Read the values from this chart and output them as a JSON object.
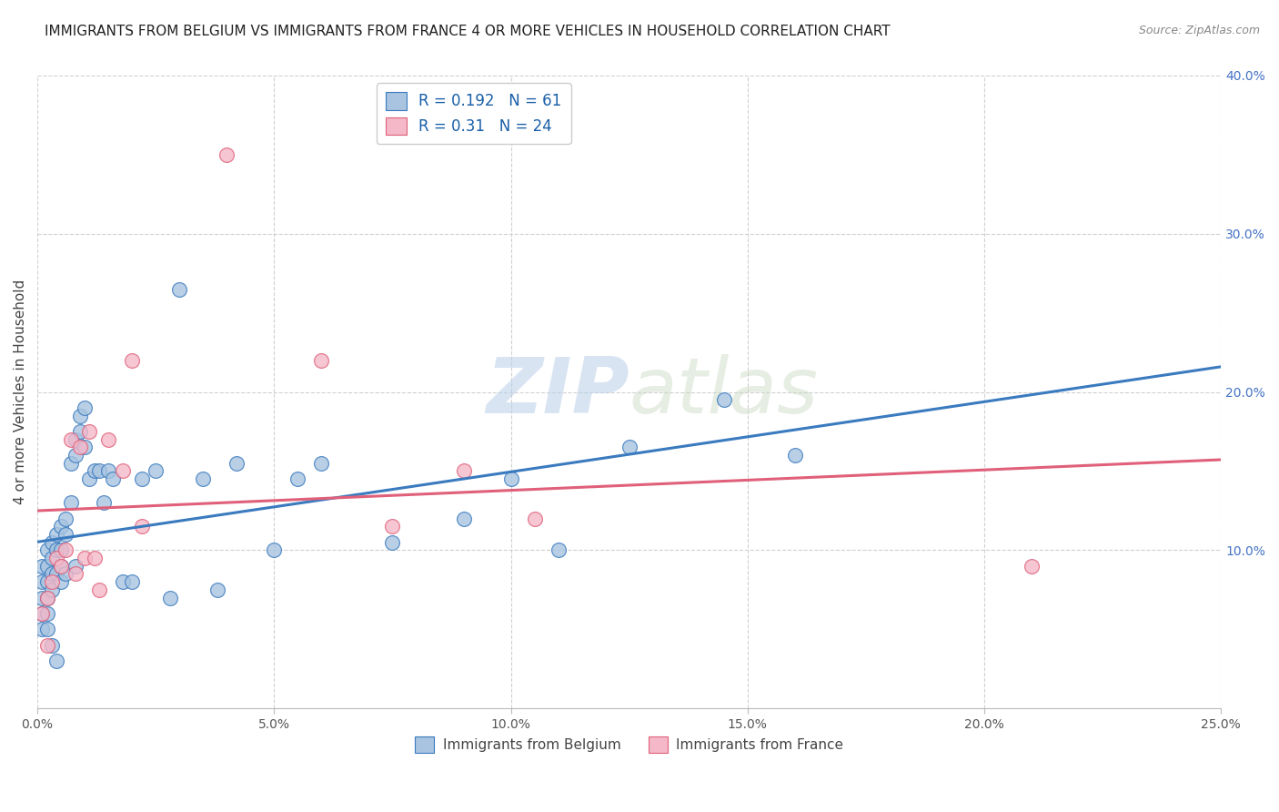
{
  "title": "IMMIGRANTS FROM BELGIUM VS IMMIGRANTS FROM FRANCE 4 OR MORE VEHICLES IN HOUSEHOLD CORRELATION CHART",
  "source": "Source: ZipAtlas.com",
  "ylabel": "4 or more Vehicles in Household",
  "legend_label1": "Immigrants from Belgium",
  "legend_label2": "Immigrants from France",
  "R1": 0.192,
  "N1": 61,
  "R2": 0.31,
  "N2": 24,
  "color_belgium": "#a8c4e0",
  "color_france": "#f4b8c8",
  "line_color_belgium": "#3a7abf",
  "line_color_france": "#e0607a",
  "xlim": [
    0.0,
    0.25
  ],
  "ylim": [
    0.0,
    0.4
  ],
  "xticks": [
    0.0,
    0.05,
    0.1,
    0.15,
    0.2,
    0.25
  ],
  "yticks": [
    0.0,
    0.1,
    0.2,
    0.3,
    0.4
  ],
  "xtick_labels": [
    "0.0%",
    "5.0%",
    "10.0%",
    "15.0%",
    "20.0%",
    "25.0%"
  ],
  "ytick_labels_right": [
    "",
    "10.0%",
    "20.0%",
    "30.0%",
    "40.0%"
  ],
  "belgium_x": [
    0.001,
    0.001,
    0.001,
    0.001,
    0.001,
    0.002,
    0.002,
    0.002,
    0.002,
    0.002,
    0.002,
    0.003,
    0.003,
    0.003,
    0.003,
    0.003,
    0.004,
    0.004,
    0.004,
    0.004,
    0.005,
    0.005,
    0.005,
    0.005,
    0.006,
    0.006,
    0.006,
    0.007,
    0.007,
    0.008,
    0.008,
    0.008,
    0.009,
    0.009,
    0.01,
    0.01,
    0.011,
    0.012,
    0.013,
    0.014,
    0.015,
    0.016,
    0.018,
    0.02,
    0.022,
    0.025,
    0.028,
    0.03,
    0.035,
    0.038,
    0.042,
    0.05,
    0.055,
    0.06,
    0.075,
    0.09,
    0.1,
    0.11,
    0.125,
    0.145,
    0.16
  ],
  "belgium_y": [
    0.09,
    0.08,
    0.07,
    0.06,
    0.05,
    0.1,
    0.09,
    0.08,
    0.07,
    0.06,
    0.05,
    0.105,
    0.095,
    0.085,
    0.075,
    0.04,
    0.11,
    0.1,
    0.085,
    0.03,
    0.115,
    0.1,
    0.09,
    0.08,
    0.12,
    0.11,
    0.085,
    0.155,
    0.13,
    0.17,
    0.16,
    0.09,
    0.185,
    0.175,
    0.19,
    0.165,
    0.145,
    0.15,
    0.15,
    0.13,
    0.15,
    0.145,
    0.08,
    0.08,
    0.145,
    0.15,
    0.07,
    0.265,
    0.145,
    0.075,
    0.155,
    0.1,
    0.145,
    0.155,
    0.105,
    0.12,
    0.145,
    0.1,
    0.165,
    0.195,
    0.16
  ],
  "france_x": [
    0.001,
    0.002,
    0.002,
    0.003,
    0.004,
    0.005,
    0.006,
    0.007,
    0.008,
    0.009,
    0.01,
    0.011,
    0.012,
    0.013,
    0.015,
    0.018,
    0.02,
    0.022,
    0.04,
    0.06,
    0.075,
    0.09,
    0.105,
    0.21
  ],
  "france_y": [
    0.06,
    0.07,
    0.04,
    0.08,
    0.095,
    0.09,
    0.1,
    0.17,
    0.085,
    0.165,
    0.095,
    0.175,
    0.095,
    0.075,
    0.17,
    0.15,
    0.22,
    0.115,
    0.35,
    0.22,
    0.115,
    0.15,
    0.12,
    0.09
  ],
  "watermark_zip": "ZIP",
  "watermark_atlas": "atlas",
  "background_color": "#ffffff",
  "grid_color": "#d0d0d0",
  "title_fontsize": 11,
  "axis_label_fontsize": 11,
  "tick_label_fontsize": 10,
  "tick_color_right": "#4472c4"
}
